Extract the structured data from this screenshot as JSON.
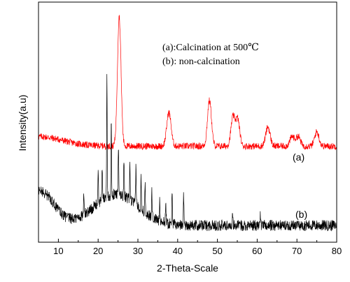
{
  "chart_data": {
    "type": "line",
    "xlabel": "2-Theta-Scale",
    "ylabel": "Intensity(a.u)",
    "xlim": [
      5,
      80
    ],
    "ylim": [
      0,
      100
    ],
    "x_ticks": [
      10,
      20,
      30,
      40,
      50,
      60,
      70,
      80
    ],
    "grid": false,
    "legend": {
      "placement": "top-right",
      "entries": [
        "(a):Calcination at 500℃",
        "(b): non-calcination"
      ]
    },
    "series": [
      {
        "name": "(a)",
        "color": "#ff0000",
        "baseline": 40,
        "noise": 1.4,
        "peaks": [
          {
            "x": 25.3,
            "height": 54,
            "width": 0.45
          },
          {
            "x": 37.8,
            "height": 14,
            "width": 0.55
          },
          {
            "x": 48.0,
            "height": 19,
            "width": 0.5
          },
          {
            "x": 53.9,
            "height": 12,
            "width": 0.5
          },
          {
            "x": 55.1,
            "height": 11,
            "width": 0.5
          },
          {
            "x": 62.7,
            "height": 8,
            "width": 0.55
          },
          {
            "x": 68.8,
            "height": 4,
            "width": 0.55
          },
          {
            "x": 70.3,
            "height": 4,
            "width": 0.55
          },
          {
            "x": 75.0,
            "height": 6,
            "width": 0.55
          }
        ],
        "broad_humps": [
          {
            "x": 5,
            "height": 4,
            "width": 6
          }
        ]
      },
      {
        "name": "(b)",
        "color": "#000000",
        "baseline": 7,
        "noise": 2.3,
        "peaks": [
          {
            "x": 16.4,
            "height": 8,
            "width": 0.08
          },
          {
            "x": 20.0,
            "height": 12,
            "width": 0.08
          },
          {
            "x": 21.0,
            "height": 14,
            "width": 0.08
          },
          {
            "x": 22.2,
            "height": 53,
            "width": 0.07
          },
          {
            "x": 23.3,
            "height": 31,
            "width": 0.07
          },
          {
            "x": 25.1,
            "height": 19,
            "width": 0.08
          },
          {
            "x": 26.5,
            "height": 16,
            "width": 0.08
          },
          {
            "x": 28.0,
            "height": 14,
            "width": 0.08
          },
          {
            "x": 29.5,
            "height": 16,
            "width": 0.08
          },
          {
            "x": 30.8,
            "height": 14,
            "width": 0.08
          },
          {
            "x": 31.8,
            "height": 12,
            "width": 0.08
          },
          {
            "x": 33.5,
            "height": 11,
            "width": 0.08
          },
          {
            "x": 35.5,
            "height": 10,
            "width": 0.08
          },
          {
            "x": 37.0,
            "height": 9,
            "width": 0.08
          },
          {
            "x": 38.6,
            "height": 15,
            "width": 0.08
          },
          {
            "x": 41.5,
            "height": 13,
            "width": 0.08
          },
          {
            "x": 53.8,
            "height": 4,
            "width": 0.1
          },
          {
            "x": 60.8,
            "height": 4,
            "width": 0.1
          }
        ],
        "broad_humps": [
          {
            "x": 5.5,
            "height": 14,
            "width": 3.5
          },
          {
            "x": 24.5,
            "height": 13,
            "width": 5.5
          }
        ]
      }
    ],
    "annotations": [
      "(a)",
      "(b)"
    ]
  }
}
